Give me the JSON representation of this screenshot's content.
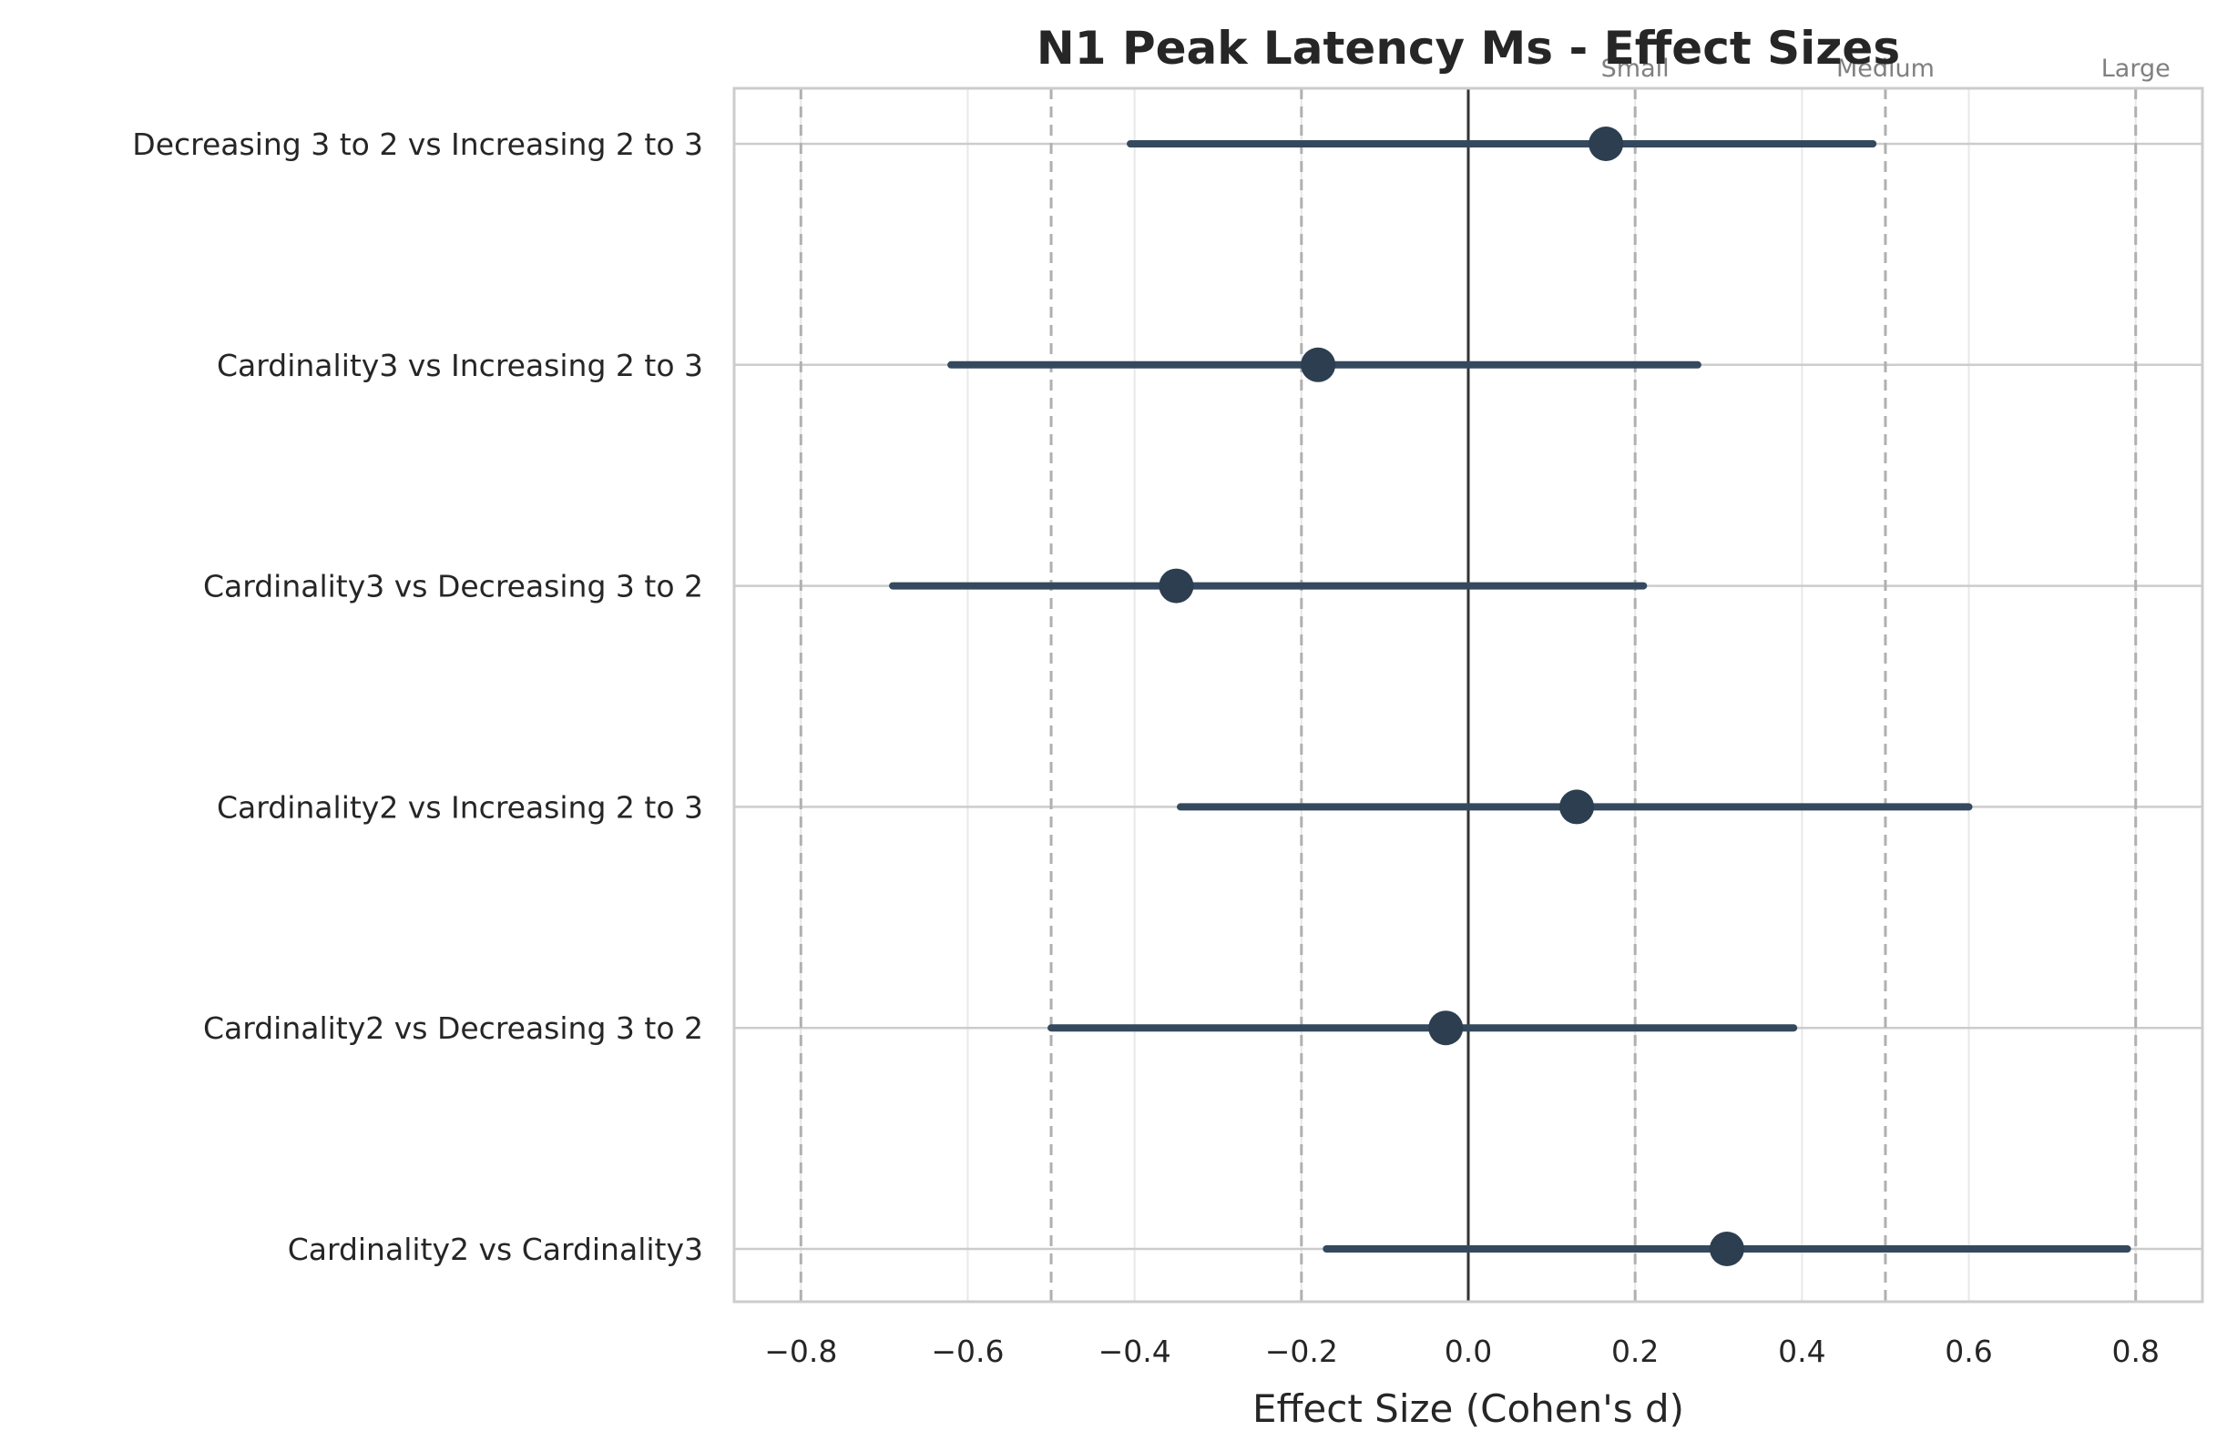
{
  "chart_data": {
    "type": "forest",
    "title": "N1 Peak Latency Ms - Effect Sizes",
    "xlabel": "Effect Size (Cohen's d)",
    "ylabel": "",
    "xlim": [
      -0.88,
      0.88
    ],
    "xticks": [
      -0.8,
      -0.6,
      -0.4,
      -0.2,
      0.0,
      0.2,
      0.4,
      0.6,
      0.8
    ],
    "xtick_labels": [
      "−0.8",
      "−0.6",
      "−0.4",
      "−0.2",
      "0.0",
      "0.2",
      "0.4",
      "0.6",
      "0.8"
    ],
    "grid": true,
    "comparisons": [
      {
        "label": "Decreasing 3 to 2 vs Increasing 2 to 3",
        "d": 0.165,
        "ci_low": -0.405,
        "ci_high": 0.485
      },
      {
        "label": "Cardinality3 vs Increasing 2 to 3",
        "d": -0.18,
        "ci_low": -0.62,
        "ci_high": 0.275
      },
      {
        "label": "Cardinality3 vs Decreasing 3 to 2",
        "d": -0.35,
        "ci_low": -0.69,
        "ci_high": 0.21
      },
      {
        "label": "Cardinality2 vs Increasing 2 to 3",
        "d": 0.13,
        "ci_low": -0.345,
        "ci_high": 0.6
      },
      {
        "label": "Cardinality2 vs Decreasing 3 to 2",
        "d": -0.027,
        "ci_low": -0.5,
        "ci_high": 0.39
      },
      {
        "label": "Cardinality2 vs Cardinality3",
        "d": 0.31,
        "ci_low": -0.17,
        "ci_high": 0.79
      }
    ],
    "reference_lines": [
      {
        "value": -0.8,
        "label": ""
      },
      {
        "value": -0.5,
        "label": ""
      },
      {
        "value": -0.2,
        "label": ""
      },
      {
        "value": 0.2,
        "label": "Small"
      },
      {
        "value": 0.5,
        "label": "Medium"
      },
      {
        "value": 0.8,
        "label": "Large"
      }
    ],
    "zero_line": 0.0,
    "colors": {
      "marker": "#2c3e50",
      "ci_line": "#34495e",
      "zero_line": "#333333",
      "ref_line": "#b0b0b0",
      "grid": "#cccccc",
      "grid_minor": "#e8e8e8",
      "spine": "#cccccc"
    }
  }
}
